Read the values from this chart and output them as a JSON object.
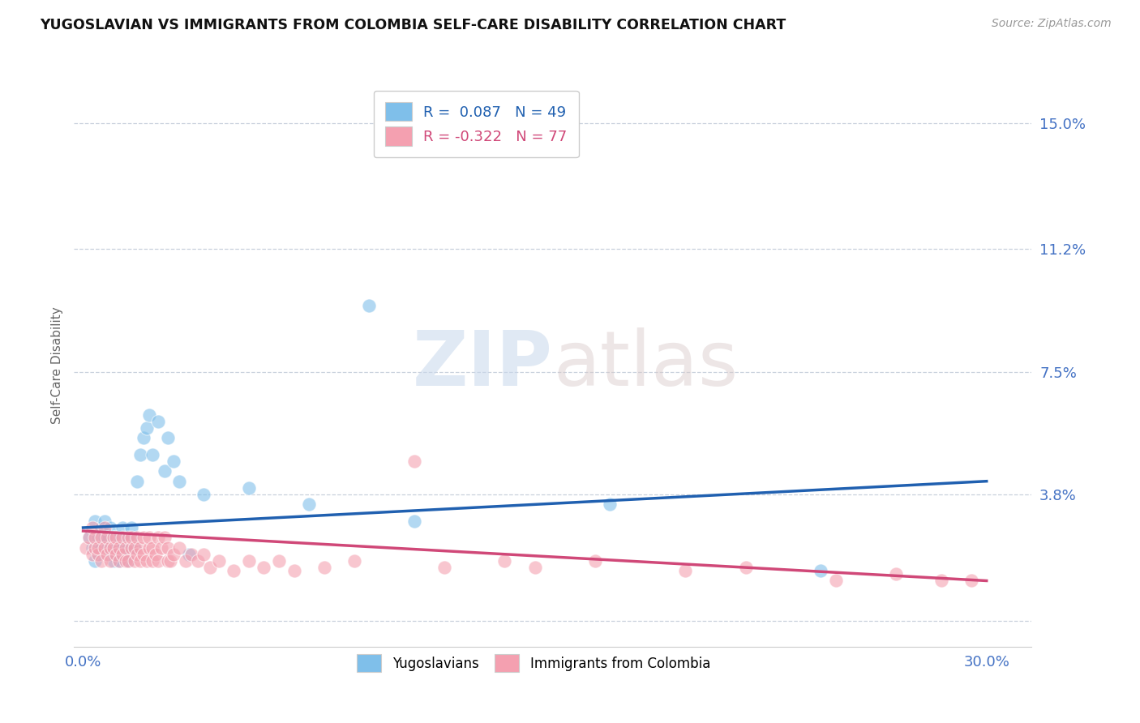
{
  "title": "YUGOSLAVIAN VS IMMIGRANTS FROM COLOMBIA SELF-CARE DISABILITY CORRELATION CHART",
  "source_text": "Source: ZipAtlas.com",
  "ylabel": "Self-Care Disability",
  "xmin": 0.0,
  "xmax": 0.3,
  "ymin": -0.008,
  "ymax": 0.162,
  "yticks": [
    0.0,
    0.038,
    0.075,
    0.112,
    0.15
  ],
  "ytick_labels": [
    "",
    "3.8%",
    "7.5%",
    "11.2%",
    "15.0%"
  ],
  "xtick_labels": [
    "0.0%",
    "30.0%"
  ],
  "r_blue": 0.087,
  "n_blue": 49,
  "r_pink": -0.322,
  "n_pink": 77,
  "blue_color": "#7fbfea",
  "pink_color": "#f4a0b0",
  "trendline_blue": "#2060b0",
  "trendline_pink": "#d04878",
  "legend_label_blue": "Yugoslavians",
  "legend_label_pink": "Immigrants from Colombia",
  "blue_trend_start": 0.028,
  "blue_trend_end": 0.042,
  "pink_trend_start": 0.027,
  "pink_trend_end": 0.012,
  "blue_scatter_x": [
    0.002,
    0.003,
    0.004,
    0.004,
    0.005,
    0.005,
    0.006,
    0.006,
    0.007,
    0.007,
    0.008,
    0.008,
    0.009,
    0.009,
    0.01,
    0.01,
    0.01,
    0.011,
    0.011,
    0.012,
    0.012,
    0.013,
    0.013,
    0.014,
    0.014,
    0.015,
    0.015,
    0.016,
    0.016,
    0.017,
    0.018,
    0.019,
    0.02,
    0.021,
    0.022,
    0.023,
    0.025,
    0.027,
    0.028,
    0.03,
    0.032,
    0.035,
    0.04,
    0.055,
    0.075,
    0.095,
    0.11,
    0.175,
    0.245
  ],
  "blue_scatter_y": [
    0.025,
    0.022,
    0.03,
    0.018,
    0.025,
    0.02,
    0.028,
    0.022,
    0.025,
    0.03,
    0.022,
    0.025,
    0.02,
    0.028,
    0.022,
    0.018,
    0.025,
    0.02,
    0.022,
    0.018,
    0.025,
    0.022,
    0.028,
    0.02,
    0.025,
    0.022,
    0.018,
    0.025,
    0.028,
    0.022,
    0.042,
    0.05,
    0.055,
    0.058,
    0.062,
    0.05,
    0.06,
    0.045,
    0.055,
    0.048,
    0.042,
    0.02,
    0.038,
    0.04,
    0.035,
    0.095,
    0.03,
    0.035,
    0.015
  ],
  "pink_scatter_x": [
    0.001,
    0.002,
    0.003,
    0.003,
    0.004,
    0.004,
    0.005,
    0.005,
    0.006,
    0.006,
    0.007,
    0.007,
    0.008,
    0.008,
    0.009,
    0.009,
    0.01,
    0.01,
    0.011,
    0.011,
    0.012,
    0.012,
    0.013,
    0.013,
    0.014,
    0.014,
    0.015,
    0.015,
    0.016,
    0.016,
    0.017,
    0.017,
    0.018,
    0.018,
    0.019,
    0.019,
    0.02,
    0.02,
    0.021,
    0.022,
    0.022,
    0.023,
    0.023,
    0.024,
    0.025,
    0.025,
    0.026,
    0.027,
    0.028,
    0.028,
    0.029,
    0.03,
    0.032,
    0.034,
    0.036,
    0.038,
    0.04,
    0.042,
    0.045,
    0.05,
    0.055,
    0.06,
    0.065,
    0.07,
    0.08,
    0.09,
    0.11,
    0.12,
    0.14,
    0.15,
    0.17,
    0.2,
    0.22,
    0.25,
    0.27,
    0.285,
    0.295
  ],
  "pink_scatter_y": [
    0.022,
    0.025,
    0.02,
    0.028,
    0.022,
    0.025,
    0.02,
    0.022,
    0.025,
    0.018,
    0.022,
    0.028,
    0.02,
    0.025,
    0.022,
    0.018,
    0.025,
    0.022,
    0.02,
    0.025,
    0.018,
    0.022,
    0.025,
    0.02,
    0.018,
    0.022,
    0.025,
    0.018,
    0.022,
    0.025,
    0.018,
    0.022,
    0.02,
    0.025,
    0.018,
    0.022,
    0.02,
    0.025,
    0.018,
    0.022,
    0.025,
    0.018,
    0.022,
    0.02,
    0.025,
    0.018,
    0.022,
    0.025,
    0.018,
    0.022,
    0.018,
    0.02,
    0.022,
    0.018,
    0.02,
    0.018,
    0.02,
    0.016,
    0.018,
    0.015,
    0.018,
    0.016,
    0.018,
    0.015,
    0.016,
    0.018,
    0.048,
    0.016,
    0.018,
    0.016,
    0.018,
    0.015,
    0.016,
    0.012,
    0.014,
    0.012,
    0.012
  ]
}
